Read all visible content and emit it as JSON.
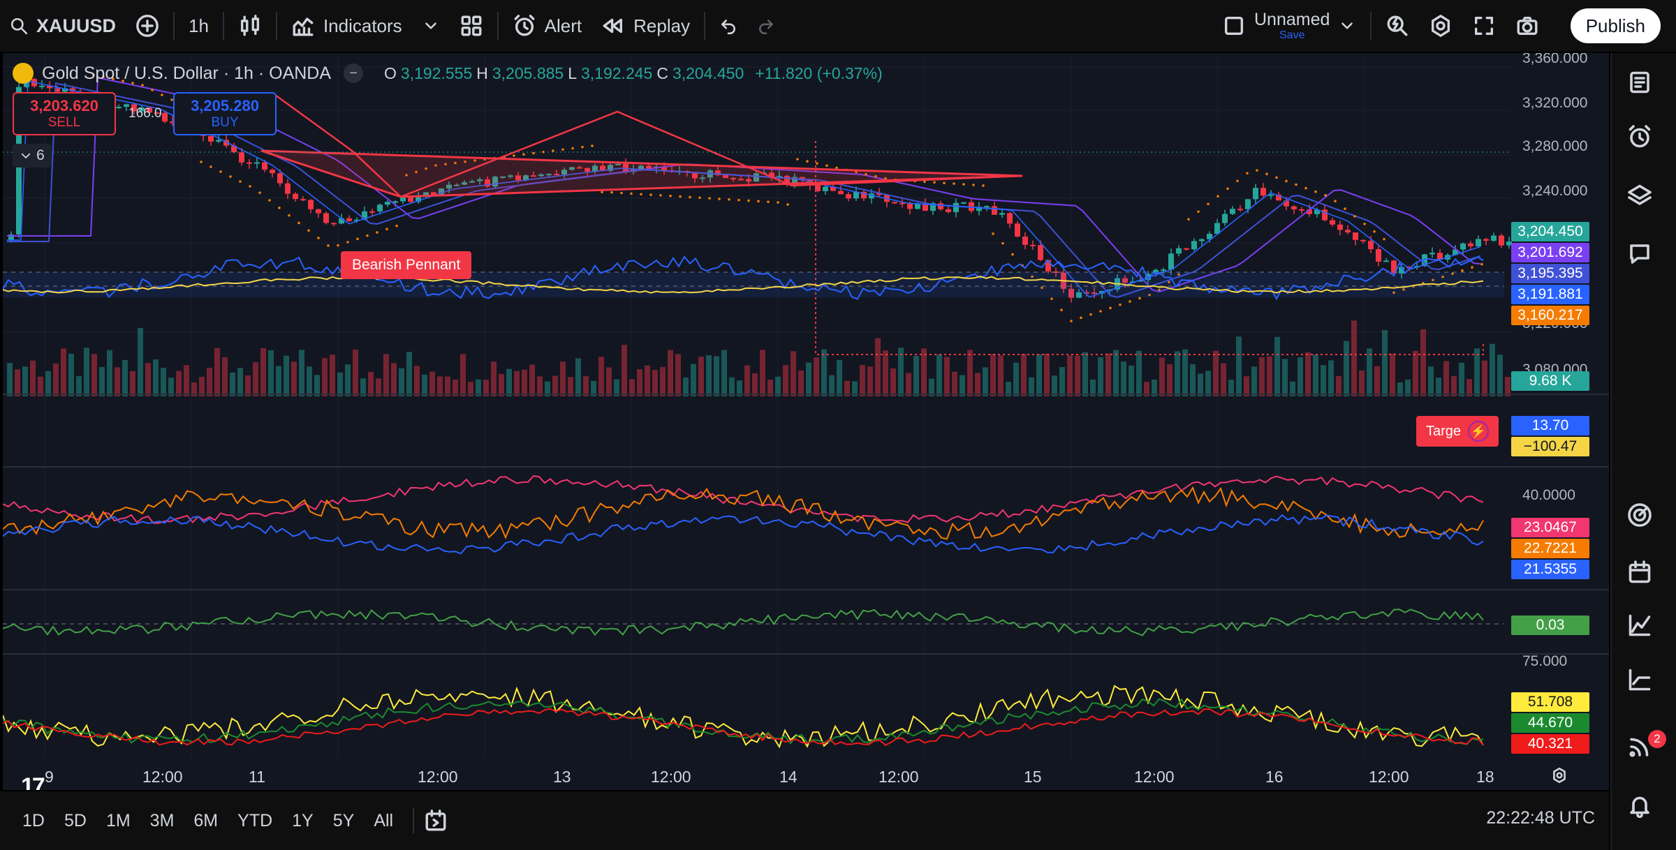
{
  "toolbar": {
    "symbol": "XAUUSD",
    "interval": "1h",
    "indicators_label": "Indicators",
    "alert_label": "Alert",
    "replay_label": "Replay",
    "layout_name": "Unnamed",
    "save_label": "Save",
    "publish_label": "Publish"
  },
  "legend": {
    "title": "Gold Spot / U.S. Dollar · 1h · OANDA",
    "open_key": "O",
    "open": "3,192.555",
    "high_key": "H",
    "high": "3,205.885",
    "low_key": "L",
    "low": "3,192.245",
    "close_key": "C",
    "close": "3,204.450",
    "change": "+11.820 (+0.37%)"
  },
  "trade": {
    "sell_price": "3,203.620",
    "sell_label": "SELL",
    "buy_price": "3,205.280",
    "buy_label": "BUY",
    "spread": "166.0",
    "indicator_count": "6"
  },
  "pattern_label": "Bearish Pennant",
  "target_label": "Targe",
  "price_ticks": [
    "3,360.000",
    "3,320.000",
    "3,280.000",
    "3,240.000",
    "3,120.000",
    "3,080.000"
  ],
  "price_tags": [
    {
      "text": "3,204.450",
      "color": "#26a69a"
    },
    {
      "text": "3,201.692",
      "color": "#7b3ff2"
    },
    {
      "text": "3,195.395",
      "color": "#3f51d6"
    },
    {
      "text": "3,191.881",
      "color": "#2962ff"
    },
    {
      "text": "3,160.217",
      "color": "#f57c00"
    },
    {
      "text": "9.68 K",
      "color": "#26a69a"
    }
  ],
  "cci_tags": [
    {
      "text": "13.70",
      "color": "#2962ff"
    },
    {
      "text": "−100.47",
      "color": "#f5d546"
    }
  ],
  "dmi_tick": "40.0000",
  "dmi_tags": [
    {
      "text": "23.0467",
      "color": "#f23670"
    },
    {
      "text": "22.7221",
      "color": "#f57c00"
    },
    {
      "text": "21.5355",
      "color": "#2962ff"
    }
  ],
  "mom_tag": {
    "text": "0.03",
    "color": "#43a047"
  },
  "stoch_tick": "75.000",
  "stoch_tags": [
    {
      "text": "51.708",
      "color": "#ffeb3b"
    },
    {
      "text": "44.670",
      "color": "#1b8a2e"
    },
    {
      "text": "40.321",
      "color": "#f01b1b"
    }
  ],
  "time_labels": [
    "9",
    "12:00",
    "11",
    "12:00",
    "13",
    "12:00",
    "14",
    "12:00",
    "15",
    "12:00",
    "16",
    "12:00",
    "18"
  ],
  "ranges": [
    "1D",
    "5D",
    "1M",
    "3M",
    "6M",
    "YTD",
    "1Y",
    "5Y",
    "All"
  ],
  "clock": "22:22:48 UTC",
  "notifications_badge": "2",
  "tv_logo": "17",
  "colors": {
    "up": "#26a69a",
    "down": "#f23645",
    "background": "#121621"
  }
}
